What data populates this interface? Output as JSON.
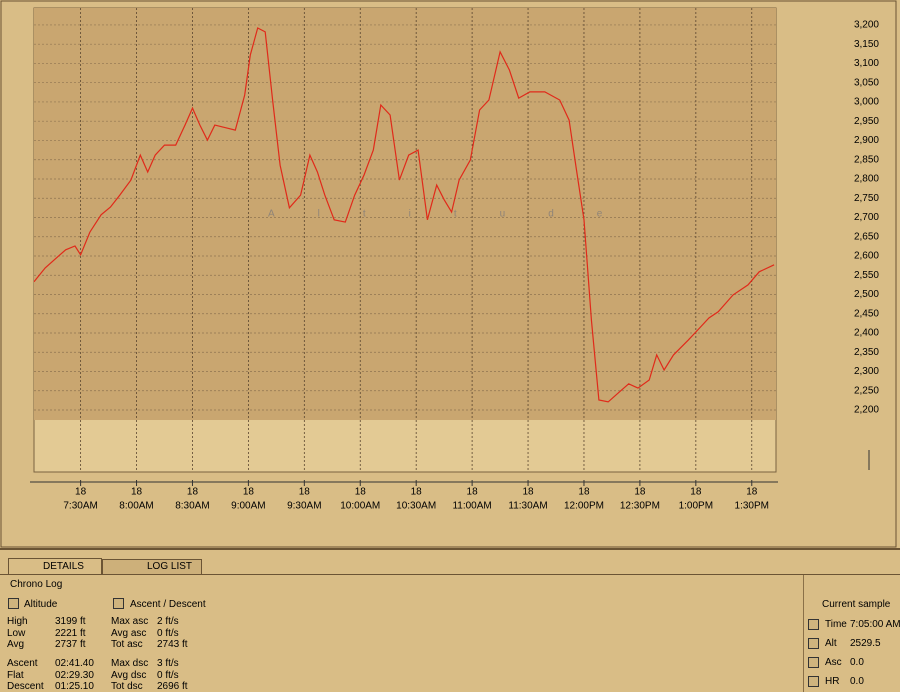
{
  "chart_data": {
    "type": "line",
    "overlay_label": "Altitude",
    "x": [
      425,
      431,
      437,
      442,
      447,
      450,
      455,
      461,
      466,
      471,
      477,
      482,
      486,
      490,
      495,
      501,
      506,
      510,
      514,
      518,
      522,
      528,
      533,
      538,
      541,
      545,
      549,
      553,
      557,
      562,
      568,
      573,
      577,
      581,
      586,
      592,
      597,
      602,
      607,
      611,
      616,
      621,
      626,
      631,
      636,
      641,
      645,
      649,
      653,
      659,
      664,
      669,
      675,
      680,
      685,
      691,
      699,
      707,
      712,
      716,
      720,
      724,
      728,
      733,
      739,
      744,
      749,
      755,
      759,
      763,
      768,
      776,
      782,
      787,
      792,
      800,
      808,
      814,
      822
    ],
    "series": [
      {
        "color": "#e02a1a",
        "values": [
          2533,
          2569,
          2595,
          2616,
          2626,
          2603,
          2662,
          2707,
          2727,
          2758,
          2797,
          2862,
          2818,
          2862,
          2888,
          2888,
          2940,
          2984,
          2940,
          2901,
          2940,
          2933,
          2927,
          3018,
          3122,
          3192,
          3182,
          3005,
          2836,
          2725,
          2758,
          2862,
          2818,
          2758,
          2694,
          2688,
          2758,
          2810,
          2875,
          2992,
          2966,
          2797,
          2862,
          2875,
          2694,
          2784,
          2746,
          2714,
          2797,
          2849,
          2979,
          3005,
          3130,
          3083,
          3010,
          3026,
          3026,
          3005,
          2953,
          2823,
          2694,
          2434,
          2226,
          2221,
          2247,
          2268,
          2257,
          2278,
          2343,
          2304,
          2343,
          2382,
          2413,
          2439,
          2455,
          2499,
          2525,
          2559,
          2577
        ]
      }
    ],
    "xlim": [
      425,
      823
    ],
    "ylim": [
      2039,
      3244
    ],
    "xticks": [
      {
        "value": 450,
        "label": "7:30AM",
        "day": "18"
      },
      {
        "value": 480,
        "label": "8:00AM",
        "day": "18"
      },
      {
        "value": 510,
        "label": "8:30AM",
        "day": "18"
      },
      {
        "value": 540,
        "label": "9:00AM",
        "day": "18"
      },
      {
        "value": 570,
        "label": "9:30AM",
        "day": "18"
      },
      {
        "value": 600,
        "label": "10:00AM",
        "day": "18"
      },
      {
        "value": 630,
        "label": "10:30AM",
        "day": "18"
      },
      {
        "value": 660,
        "label": "11:00AM",
        "day": "18"
      },
      {
        "value": 690,
        "label": "11:30AM",
        "day": "18"
      },
      {
        "value": 720,
        "label": "12:00PM",
        "day": "18"
      },
      {
        "value": 750,
        "label": "12:30PM",
        "day": "18"
      },
      {
        "value": 780,
        "label": "1:00PM",
        "day": "18"
      },
      {
        "value": 810,
        "label": "1:30PM",
        "day": "18"
      }
    ],
    "yticks": [
      {
        "value": 2200,
        "label": "2,200"
      },
      {
        "value": 2250,
        "label": "2,250"
      },
      {
        "value": 2300,
        "label": "2,300"
      },
      {
        "value": 2350,
        "label": "2,350"
      },
      {
        "value": 2400,
        "label": "2,400"
      },
      {
        "value": 2450,
        "label": "2,450"
      },
      {
        "value": 2500,
        "label": "2,500"
      },
      {
        "value": 2550,
        "label": "2,550"
      },
      {
        "value": 2600,
        "label": "2,600"
      },
      {
        "value": 2650,
        "label": "2,650"
      },
      {
        "value": 2700,
        "label": "2,700"
      },
      {
        "value": 2750,
        "label": "2,750"
      },
      {
        "value": 2800,
        "label": "2,800"
      },
      {
        "value": 2850,
        "label": "2,850"
      },
      {
        "value": 2900,
        "label": "2,900"
      },
      {
        "value": 2950,
        "label": "2,950"
      },
      {
        "value": 3000,
        "label": "3,000"
      },
      {
        "value": 3050,
        "label": "3,050"
      },
      {
        "value": 3100,
        "label": "3,100"
      },
      {
        "value": 3150,
        "label": "3,150"
      },
      {
        "value": 3200,
        "label": "3,200"
      }
    ],
    "grid": true
  },
  "tabs": [
    "DETAILS",
    "LOG LIST"
  ],
  "details": {
    "title": "Chrono Log",
    "altitude": {
      "title": "Altitude",
      "rows": [
        [
          "High",
          "3199 ft"
        ],
        [
          "Low",
          "2221 ft"
        ],
        [
          "Avg",
          "2737 ft"
        ]
      ],
      "time_rows": [
        [
          "Ascent",
          "02:41.40"
        ],
        [
          "Flat",
          "02:29.30"
        ],
        [
          "Descent",
          "01:25.10"
        ]
      ]
    },
    "ascent_descent": {
      "title": "Ascent / Descent",
      "rows": [
        [
          "Max asc",
          "2 ft/s"
        ],
        [
          "Avg asc",
          "0 ft/s"
        ],
        [
          "Tot asc",
          "2743 ft"
        ]
      ],
      "dsc_rows": [
        [
          "Max dsc",
          "3 ft/s"
        ],
        [
          "Avg dsc",
          "0 ft/s"
        ],
        [
          "Tot dsc",
          "2696 ft"
        ]
      ]
    },
    "current_sample": {
      "title": "Current sample",
      "rows": [
        [
          "Time",
          "7:05:00 AM"
        ],
        [
          "Alt",
          "2529.5"
        ],
        [
          "Asc",
          "0.0"
        ],
        [
          "HR",
          "0.0"
        ]
      ]
    }
  }
}
